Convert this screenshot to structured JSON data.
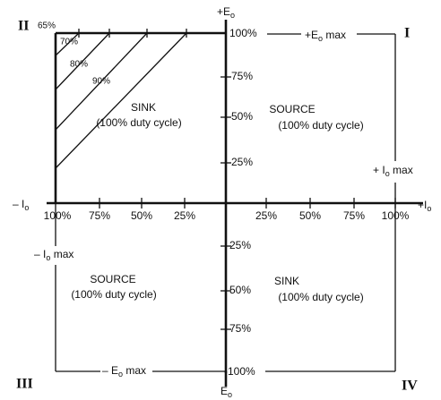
{
  "quadrants": [
    "II",
    "I",
    "III",
    "IV"
  ],
  "regions": [
    {
      "label": "SINK",
      "note": "(100% duty cycle)"
    },
    {
      "label": "SOURCE",
      "note": "(100% duty cycle)"
    },
    {
      "label": "SOURCE",
      "note": "(100% duty cycle)"
    },
    {
      "label": "SINK",
      "note": "(100% duty cycle)"
    }
  ],
  "efficiency_labels": [
    "65%",
    "70%",
    "80%",
    "90%"
  ],
  "axes": {
    "top": {
      "main": "+E",
      "sub": "o"
    },
    "bottom": {
      "main": "E",
      "sub": "o"
    },
    "left": {
      "main": "– I",
      "sub": "o"
    },
    "right": {
      "main": "+I",
      "sub": "o"
    }
  },
  "limits": {
    "plus_e_max": {
      "main": "+E",
      "sub": "o",
      "suffix": " max"
    },
    "minus_e_max": {
      "main": "– E",
      "sub": "o",
      "suffix": " max"
    },
    "plus_i_max": {
      "main": "+ I",
      "sub": "o",
      "suffix": " max"
    },
    "minus_i_max": {
      "main": "– I",
      "sub": "o",
      "suffix": " max"
    }
  },
  "voltage_ticks": [
    "100%",
    "75%",
    "50%",
    "25%",
    "-25%",
    "-50%",
    "-75%",
    "-100%"
  ],
  "current_ticks_left": [
    "100%",
    "75%",
    "50%",
    "25%"
  ],
  "current_ticks_right": [
    "25%",
    "50%",
    "75%",
    "100%"
  ]
}
